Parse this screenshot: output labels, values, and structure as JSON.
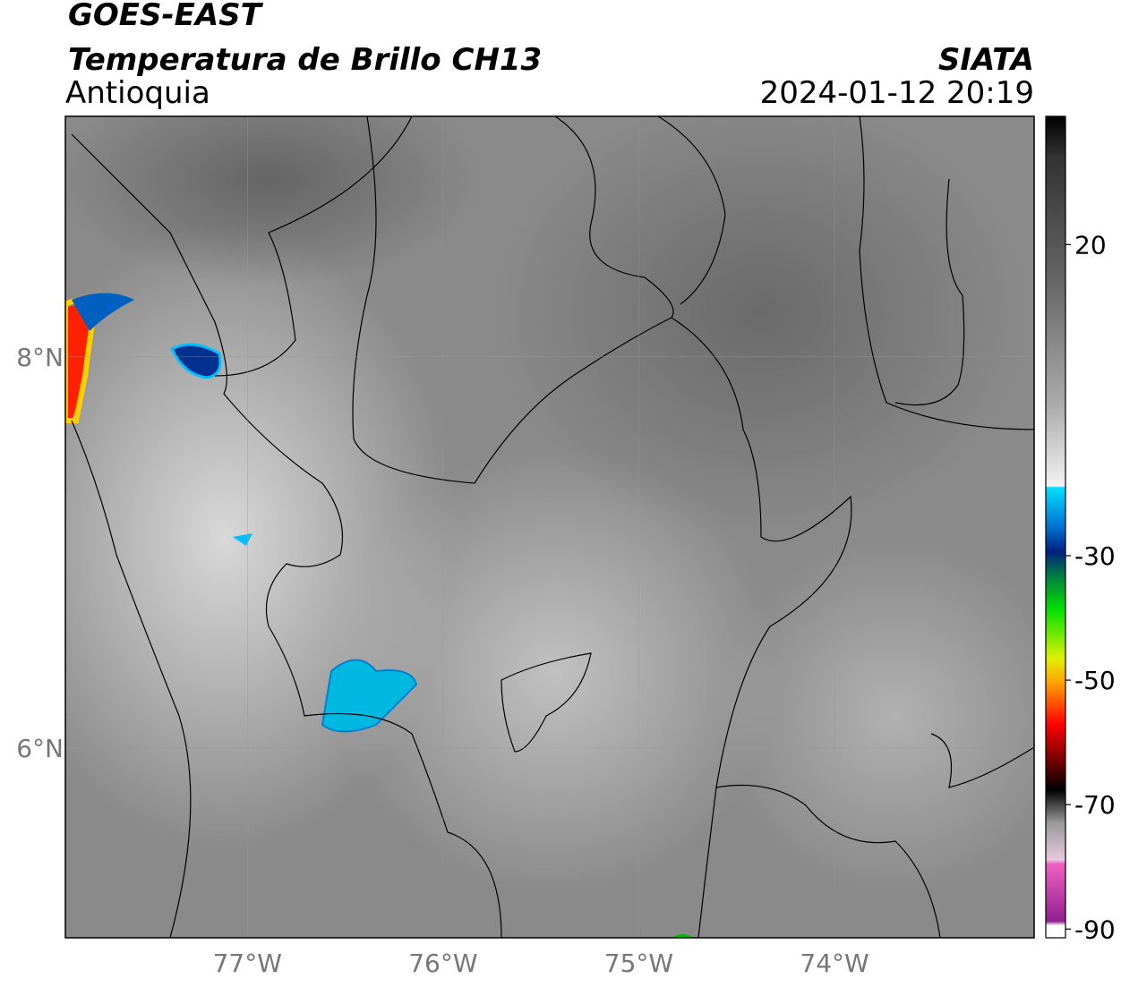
{
  "header": {
    "title": "GOES-EAST",
    "subtitle": "Temperatura de Brillo CH13",
    "region": "Antioquia",
    "source": "SIATA",
    "timestamp": "2024-01-12 20:19"
  },
  "map": {
    "xlim": [
      -77.93,
      -72.98
    ],
    "ylim": [
      5.03,
      9.23
    ],
    "grid": true,
    "xticks": [
      {
        "value": -77,
        "label": "77°W"
      },
      {
        "value": -76,
        "label": "76°W"
      },
      {
        "value": -75,
        "label": "75°W"
      },
      {
        "value": -74,
        "label": "74°W"
      }
    ],
    "yticks": [
      {
        "value": 8,
        "label": "8°N"
      },
      {
        "value": 6,
        "label": "6°N"
      }
    ]
  },
  "colorbar": {
    "lim": [
      -91.4,
      40.6
    ],
    "ticks": [
      20,
      -30,
      -50,
      -70,
      -90
    ]
  }
}
